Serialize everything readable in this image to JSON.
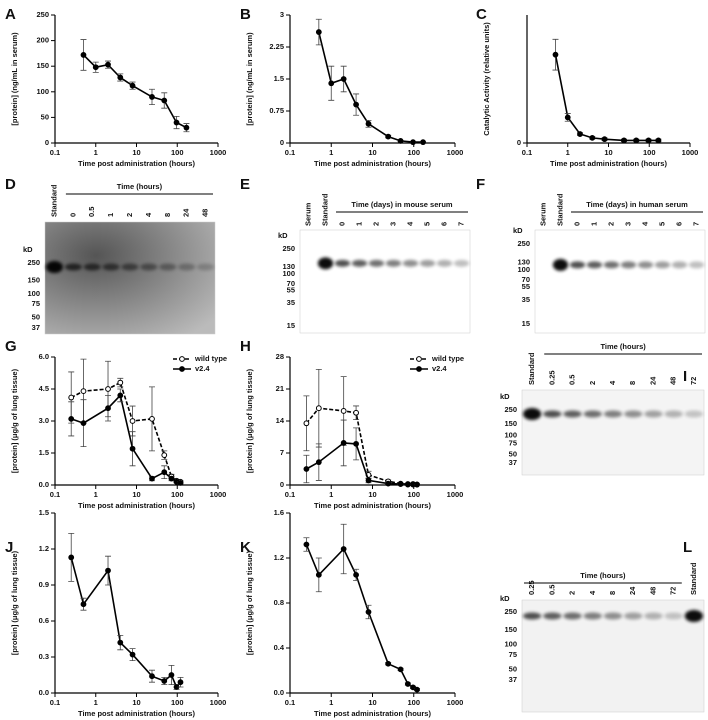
{
  "chart_data": [
    {
      "type": "line",
      "panel": "A",
      "xscale": "log",
      "xlim": [
        0.1,
        1000
      ],
      "xticks": [
        0.1,
        1,
        10,
        100,
        1000
      ],
      "ylim": [
        0,
        250
      ],
      "yticks": [
        0,
        50,
        100,
        150,
        200,
        250
      ],
      "xlabel": "Time post administration (hours)",
      "ylabel": "[protein] (ng/mL in serum)",
      "x": [
        0.5,
        1,
        2,
        4,
        8,
        24,
        48,
        96,
        168
      ],
      "series": [
        {
          "color": "#000000",
          "linestyle": "solid",
          "marker": "filled",
          "values": [
            172,
            148,
            153,
            128,
            112,
            90,
            83,
            40,
            30
          ],
          "errors": [
            30,
            10,
            7,
            7,
            7,
            15,
            15,
            12,
            8
          ]
        }
      ]
    },
    {
      "type": "line",
      "panel": "B",
      "xscale": "log",
      "xlim": [
        0.1,
        1000
      ],
      "xticks": [
        0.1,
        1,
        10,
        100,
        1000
      ],
      "ylim": [
        0,
        3
      ],
      "yticks": [
        0,
        0.75,
        1.5,
        2.25,
        3
      ],
      "xlabel": "Time post administration (hours)",
      "ylabel": "[protein] (ng/mL in serum)",
      "x": [
        0.5,
        1,
        2,
        4,
        8,
        24,
        48,
        96,
        168
      ],
      "series": [
        {
          "color": "#000000",
          "linestyle": "solid",
          "marker": "filled",
          "values": [
            2.6,
            1.4,
            1.5,
            0.9,
            0.45,
            0.15,
            0.05,
            0.02,
            0.02
          ],
          "errors": [
            0.3,
            0.4,
            0.3,
            0.25,
            0.08,
            0.03,
            0.01,
            0.01,
            0.01
          ]
        }
      ]
    },
    {
      "type": "line",
      "panel": "C",
      "xscale": "log",
      "xlim": [
        0.1,
        1000
      ],
      "xticks": [
        0.1,
        1,
        10,
        100,
        1000
      ],
      "ylim": [
        0,
        1
      ],
      "yticks": [
        0
      ],
      "xlabel": "Time post administration (hours)",
      "ylabel": "Catalytic Activity (relative units)",
      "x": [
        0.5,
        1,
        2,
        4,
        8,
        24,
        48,
        96,
        168
      ],
      "series": [
        {
          "color": "#000000",
          "linestyle": "solid",
          "marker": "filled",
          "values": [
            0.69,
            0.2,
            0.07,
            0.04,
            0.03,
            0.02,
            0.02,
            0.02,
            0.02
          ],
          "errors": [
            0.12,
            0.03,
            0.01,
            0.01,
            0.01,
            0.01,
            0.01,
            0.01,
            0.01
          ]
        }
      ]
    },
    {
      "type": "line",
      "panel": "G",
      "xscale": "log",
      "xlim": [
        0.1,
        1000
      ],
      "xticks": [
        0.1,
        1,
        10,
        100,
        1000
      ],
      "ylim": [
        0,
        6
      ],
      "yticks": [
        {
          "value": 0,
          "label": "0.0"
        },
        {
          "value": 1.5,
          "label": "1.5"
        },
        {
          "value": 3,
          "label": "3.0"
        },
        {
          "value": 4.5,
          "label": "4.5"
        },
        {
          "value": 6,
          "label": "6.0"
        }
      ],
      "xlabel": "Time post administration (hours)",
      "ylabel": "[protein] (μg/g of lung tissue)",
      "legend": "upper right",
      "x": [
        0.25,
        0.5,
        2,
        4,
        8,
        24,
        48,
        72,
        96,
        120
      ],
      "series": [
        {
          "name": "wild type",
          "color": "#000000",
          "linestyle": "dashed",
          "marker": "open",
          "values": [
            4.1,
            4.4,
            4.5,
            4.8,
            3.0,
            3.1,
            1.4,
            0.4,
            0.2,
            0.15
          ],
          "errors": [
            1.2,
            1.5,
            1.3,
            0.2,
            0.7,
            1.5,
            0.2,
            0.1,
            0.05,
            0.05
          ]
        },
        {
          "name": "v2.4",
          "color": "#000000",
          "linestyle": "solid",
          "marker": "filled",
          "values": [
            3.1,
            2.9,
            3.6,
            4.2,
            1.7,
            0.3,
            0.6,
            0.3,
            0.15,
            0.1
          ],
          "errors": [
            0.8,
            1.1,
            0.6,
            0.3,
            0.8,
            0.1,
            0.3,
            0.1,
            0.05,
            0.05
          ]
        }
      ]
    },
    {
      "type": "line",
      "panel": "H",
      "xscale": "log",
      "xlim": [
        0.1,
        1000
      ],
      "xticks": [
        0.1,
        1,
        10,
        100,
        1000
      ],
      "ylim": [
        0,
        28
      ],
      "yticks": [
        0,
        7,
        14,
        21,
        28
      ],
      "xlabel": "Time post administration (hours)",
      "ylabel": "[protein] (μg/g of lung tissue)",
      "legend": "upper right",
      "x": [
        0.25,
        0.5,
        2,
        4,
        8,
        24,
        48,
        72,
        96,
        120
      ],
      "series": [
        {
          "name": "wild type",
          "color": "#000000",
          "linestyle": "dashed",
          "marker": "open",
          "values": [
            13.5,
            16.8,
            16.2,
            15.8,
            2.2,
            0.8,
            0.3,
            0.2,
            0.2,
            0.1
          ],
          "errors": [
            6,
            8.5,
            7.5,
            1.5,
            0.8,
            0.3,
            0.1,
            0.1,
            0.1,
            0.05
          ]
        },
        {
          "name": "v2.4",
          "color": "#000000",
          "linestyle": "solid",
          "marker": "filled",
          "values": [
            3.5,
            5.0,
            9.2,
            9.0,
            1.0,
            0.3,
            0.2,
            0.1,
            0.1,
            0.1
          ],
          "errors": [
            3,
            4,
            5,
            3.5,
            0.5,
            0.1,
            0.1,
            0.05,
            0.05,
            0.05
          ]
        }
      ]
    },
    {
      "type": "line",
      "panel": "J",
      "xscale": "log",
      "xlim": [
        0.1,
        1000
      ],
      "xticks": [
        0.1,
        1,
        10,
        100,
        1000
      ],
      "ylim": [
        0,
        1.5
      ],
      "yticks": [
        {
          "value": 0,
          "label": "0.0"
        },
        {
          "value": 0.3,
          "label": "0.3"
        },
        {
          "value": 0.6,
          "label": "0.6"
        },
        {
          "value": 0.9,
          "label": "0.9"
        },
        {
          "value": 1.2,
          "label": "1.2"
        },
        {
          "value": 1.5,
          "label": "1.5"
        }
      ],
      "xlabel": "Time post administration (hours)",
      "ylabel": "[protein] (μg/g of lung tissue)",
      "x": [
        0.25,
        0.5,
        2,
        4,
        8,
        24,
        48,
        72,
        96,
        120
      ],
      "series": [
        {
          "color": "#000000",
          "linestyle": "solid",
          "marker": "filled",
          "values": [
            1.13,
            0.74,
            1.02,
            0.42,
            0.32,
            0.14,
            0.1,
            0.15,
            0.05,
            0.09
          ],
          "errors": [
            0.2,
            0.05,
            0.12,
            0.06,
            0.05,
            0.05,
            0.03,
            0.08,
            0.02,
            0.04
          ]
        }
      ]
    },
    {
      "type": "line",
      "panel": "K",
      "xscale": "log",
      "xlim": [
        0.1,
        1000
      ],
      "xticks": [
        0.1,
        1,
        10,
        100,
        1000
      ],
      "ylim": [
        0,
        1.6
      ],
      "yticks": [
        {
          "value": 0,
          "label": "0.0"
        },
        {
          "value": 0.4,
          "label": "0.4"
        },
        {
          "value": 0.8,
          "label": "0.8"
        },
        {
          "value": 1.2,
          "label": "1.2"
        },
        {
          "value": 1.6,
          "label": "1.6"
        }
      ],
      "xlabel": "Time post administration (hours)",
      "ylabel": "[protein] (μg/g of lung tissue)",
      "x": [
        0.25,
        0.5,
        2,
        4,
        8,
        24,
        48,
        72,
        96,
        120
      ],
      "series": [
        {
          "color": "#000000",
          "linestyle": "solid",
          "marker": "filled",
          "values": [
            1.32,
            1.05,
            1.28,
            1.05,
            0.72,
            0.26,
            0.21,
            0.08,
            0.05,
            0.03
          ],
          "errors": [
            0.06,
            0.15,
            0.22,
            0.05,
            0.06,
            0.01,
            0.01,
            0.01,
            0.01,
            0.01
          ]
        }
      ]
    }
  ],
  "blots": [
    {
      "panel": "D",
      "header": "Time (hours)",
      "lanes": [
        "Standard",
        "0",
        "0.5",
        "1",
        "2",
        "4",
        "8",
        "24",
        "48"
      ],
      "kd_label": "kD",
      "markers": [
        "250",
        "150",
        "100",
        "75",
        "50",
        "37"
      ]
    },
    {
      "panel": "E",
      "header": "Time (days) in mouse serum",
      "lanes": [
        "Serum",
        "Standard",
        "0",
        "1",
        "2",
        "3",
        "4",
        "5",
        "6",
        "7"
      ],
      "kd_label": "kD",
      "markers": [
        "250",
        "130",
        "100",
        "70",
        "55",
        "35",
        "15"
      ]
    },
    {
      "panel": "F",
      "header": "Time (days) in human serum",
      "lanes": [
        "Serum",
        "Standard",
        "0",
        "1",
        "2",
        "3",
        "4",
        "5",
        "6",
        "7"
      ],
      "kd_label": "kD",
      "markers": [
        "250",
        "130",
        "100",
        "70",
        "55",
        "35",
        "15"
      ]
    },
    {
      "panel": "I",
      "header": "Time (hours)",
      "lanes": [
        "Standard",
        "0.25",
        "0.5",
        "2",
        "4",
        "8",
        "24",
        "48",
        "72"
      ],
      "kd_label": "kD",
      "markers": [
        "250",
        "150",
        "100",
        "75",
        "50",
        "37"
      ]
    },
    {
      "panel": "L",
      "header": "Time (hours)",
      "lanes": [
        "0.25",
        "0.5",
        "2",
        "4",
        "8",
        "24",
        "48",
        "72",
        "Standard"
      ],
      "kd_label": "kD",
      "markers": [
        "250",
        "150",
        "100",
        "75",
        "50",
        "37"
      ]
    }
  ]
}
